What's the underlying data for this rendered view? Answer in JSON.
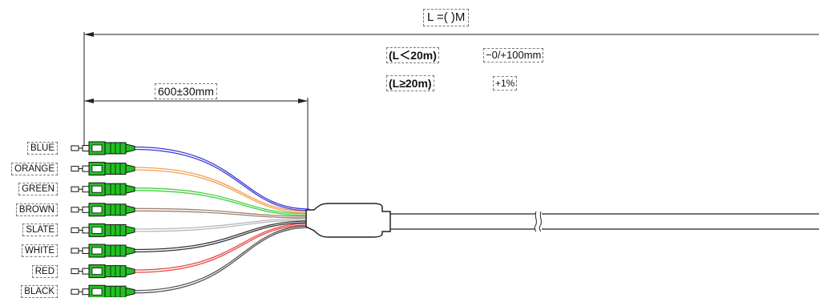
{
  "dimensions": {
    "total_length": "L =(    )M",
    "fanout_length": "600±30mm"
  },
  "tolerance": {
    "short_condition": "(L＜20m)",
    "short_value": "−0/+100mm",
    "long_condition": "(L≥20m)",
    "long_value": "+1%"
  },
  "wires": [
    {
      "label": "BLUE",
      "color": "#3a3ad8"
    },
    {
      "label": "ORANGE",
      "color": "#f0a050"
    },
    {
      "label": "GREEN",
      "color": "#44d044"
    },
    {
      "label": "BROWN",
      "color": "#a08070"
    },
    {
      "label": "SLATE",
      "color": "#b8b8b8"
    },
    {
      "label": "WHITE",
      "color": "#333333"
    },
    {
      "label": "RED",
      "color": "#e84848"
    },
    {
      "label": "BLACK",
      "color": "#555555"
    }
  ],
  "connector_color": "#22c022"
}
